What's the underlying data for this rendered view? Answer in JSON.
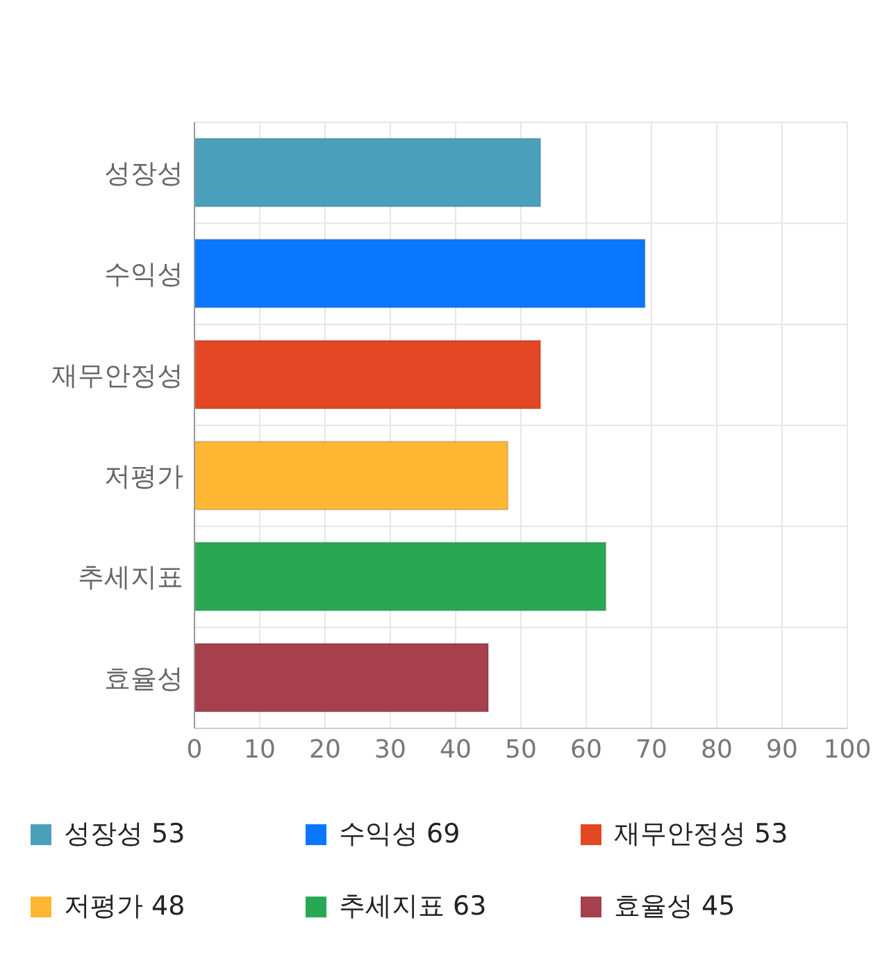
{
  "chart_data": {
    "type": "bar",
    "orientation": "horizontal",
    "stacked": true,
    "categories": [
      "성장성",
      "수익성",
      "재무안정성",
      "저평가",
      "추세지표",
      "효율성"
    ],
    "series": [
      {
        "name": "성장성 53",
        "color": "#4aa0bb",
        "values": [
          53,
          null,
          null,
          null,
          null,
          null
        ]
      },
      {
        "name": "수익성 69",
        "color": "#0a77fe",
        "values": [
          null,
          69,
          null,
          null,
          null,
          null
        ]
      },
      {
        "name": "재무안정성 53",
        "color": "#e34724",
        "values": [
          null,
          null,
          53,
          null,
          null,
          null
        ]
      },
      {
        "name": "저평가 48",
        "color": "#fdb733",
        "values": [
          null,
          null,
          null,
          48,
          null,
          null
        ]
      },
      {
        "name": "추세지표 63",
        "color": "#29a853",
        "values": [
          null,
          null,
          null,
          null,
          63,
          null
        ]
      },
      {
        "name": "효율성 45",
        "color": "#a6404d",
        "values": [
          null,
          null,
          null,
          null,
          null,
          45
        ]
      }
    ],
    "xlim": [
      0,
      100
    ],
    "xticks": [
      0,
      10,
      20,
      30,
      40,
      50,
      60,
      70,
      80,
      90,
      100
    ],
    "grid": true,
    "legend": "bottom"
  }
}
